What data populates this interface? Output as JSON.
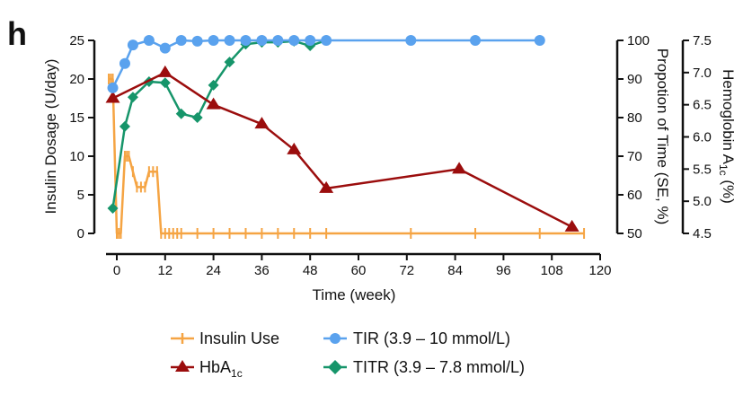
{
  "panel_label": "h",
  "chart_data": {
    "type": "line",
    "xlabel": "Time (week)",
    "xlim": [
      -2,
      120
    ],
    "xticks": [
      0,
      12,
      24,
      36,
      48,
      60,
      72,
      84,
      96,
      108,
      120
    ],
    "y_axes": [
      {
        "id": "dose",
        "label": "Insulin Dosage (U/day)",
        "side": "left",
        "range": [
          0,
          25
        ],
        "ticks": [
          0,
          5,
          10,
          15,
          20,
          25
        ]
      },
      {
        "id": "prop",
        "label": "Propotion of Time (SE, %)",
        "side": "right",
        "range": [
          50,
          100
        ],
        "ticks": [
          50,
          60,
          70,
          80,
          90,
          100
        ]
      },
      {
        "id": "hba1c",
        "label_main": "Hemoglobin A",
        "label_sub": "1c",
        "label_end": " (%)",
        "side": "right",
        "range": [
          4.5,
          7.5
        ],
        "ticks": [
          "4.5",
          "5.0",
          "5.5",
          "6.0",
          "6.5",
          "7.0",
          "7.5"
        ]
      }
    ],
    "grid": false,
    "legend_placement": "bottom",
    "series": [
      {
        "name": "Insulin Use",
        "axis": "dose",
        "color": "#f5a443",
        "marker": "tick",
        "x": [
          -2,
          -1.5,
          -1,
          0,
          0.5,
          1,
          2,
          2.5,
          3,
          4,
          5,
          6,
          7,
          8,
          9,
          10,
          11,
          12,
          13,
          14,
          15,
          16,
          20,
          24,
          28,
          32,
          36,
          40,
          44,
          48,
          52,
          73,
          89,
          105,
          116
        ],
        "y": [
          20,
          20,
          20,
          0,
          0,
          0,
          10,
          10,
          10,
          8,
          6,
          6,
          6,
          8,
          8,
          8,
          0,
          0,
          0,
          0,
          0,
          0,
          0,
          0,
          0,
          0,
          0,
          0,
          0,
          0,
          0,
          0,
          0,
          0,
          0
        ]
      },
      {
        "name": "TIR (3.9 – 10 mmol/L)",
        "axis": "prop",
        "color": "#5aa2ee",
        "marker": "circle",
        "x": [
          -1,
          2,
          4,
          8,
          12,
          16,
          20,
          24,
          28,
          32,
          36,
          40,
          44,
          48,
          52,
          73,
          89,
          105
        ],
        "y": [
          87.7,
          94,
          98.8,
          100,
          98,
          100,
          99.8,
          100,
          100,
          100,
          100,
          100,
          100,
          100,
          100,
          100,
          100,
          100
        ]
      },
      {
        "name_main": "HbA",
        "name_sub": "1c",
        "axis": "hba1c",
        "color": "#9b0d0d",
        "marker": "triangle",
        "x": [
          -1,
          12,
          24,
          36,
          44,
          52,
          85,
          113
        ],
        "y": [
          6.6,
          7.0,
          6.5,
          6.2,
          5.8,
          5.2,
          5.5,
          4.6
        ]
      },
      {
        "name": "TITR (3.9 – 7.8 mmol/L)",
        "axis": "prop",
        "color": "#16956a",
        "marker": "diamond",
        "x": [
          -1,
          2,
          4,
          8,
          12,
          16,
          20,
          24,
          28,
          32,
          36,
          40,
          44,
          48,
          52
        ],
        "y": [
          56.5,
          77.7,
          85.3,
          89.3,
          89,
          81,
          80,
          88.4,
          94.4,
          99,
          99.5,
          99.5,
          99.8,
          98.6,
          100
        ]
      }
    ]
  }
}
